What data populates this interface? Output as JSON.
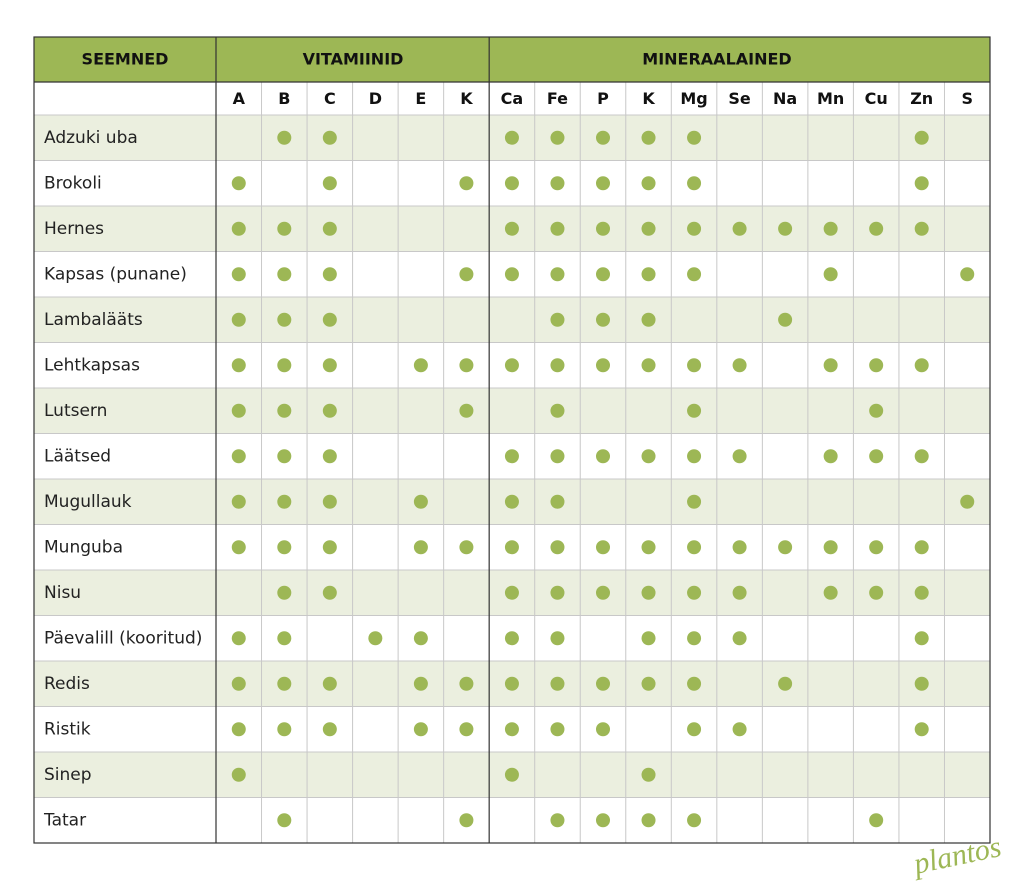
{
  "header": {
    "seeds": "SEEMNED",
    "vitamins": "VITAMIINID",
    "minerals": "MINERAALAINED"
  },
  "vitamin_columns": [
    "A",
    "B",
    "C",
    "D",
    "E",
    "K"
  ],
  "mineral_columns": [
    "Ca",
    "Fe",
    "P",
    "K",
    "Mg",
    "Se",
    "Na",
    "Mn",
    "Cu",
    "Zn",
    "S"
  ],
  "rows": [
    {
      "name": "Adzuki uba",
      "vitamins": [
        0,
        1,
        1,
        0,
        0,
        0
      ],
      "minerals": [
        1,
        1,
        1,
        1,
        1,
        0,
        0,
        0,
        0,
        1,
        0
      ]
    },
    {
      "name": "Brokoli",
      "vitamins": [
        1,
        0,
        1,
        0,
        0,
        1
      ],
      "minerals": [
        1,
        1,
        1,
        1,
        1,
        0,
        0,
        0,
        0,
        1,
        0
      ]
    },
    {
      "name": "Hernes",
      "vitamins": [
        1,
        1,
        1,
        0,
        0,
        0
      ],
      "minerals": [
        1,
        1,
        1,
        1,
        1,
        1,
        1,
        1,
        1,
        1,
        0
      ]
    },
    {
      "name": "Kapsas (punane)",
      "vitamins": [
        1,
        1,
        1,
        0,
        0,
        1
      ],
      "minerals": [
        1,
        1,
        1,
        1,
        1,
        0,
        0,
        1,
        0,
        0,
        1
      ]
    },
    {
      "name": "Lambalääts",
      "vitamins": [
        1,
        1,
        1,
        0,
        0,
        0
      ],
      "minerals": [
        0,
        1,
        1,
        1,
        0,
        0,
        1,
        0,
        0,
        0,
        0
      ]
    },
    {
      "name": "Lehtkapsas",
      "vitamins": [
        1,
        1,
        1,
        0,
        1,
        1
      ],
      "minerals": [
        1,
        1,
        1,
        1,
        1,
        1,
        0,
        1,
        1,
        1,
        0
      ]
    },
    {
      "name": "Lutsern",
      "vitamins": [
        1,
        1,
        1,
        0,
        0,
        1
      ],
      "minerals": [
        0,
        1,
        0,
        0,
        1,
        0,
        0,
        0,
        1,
        0,
        0
      ]
    },
    {
      "name": "Läätsed",
      "vitamins": [
        1,
        1,
        1,
        0,
        0,
        0
      ],
      "minerals": [
        1,
        1,
        1,
        1,
        1,
        1,
        0,
        1,
        1,
        1,
        0
      ]
    },
    {
      "name": "Mugullauk",
      "vitamins": [
        1,
        1,
        1,
        0,
        1,
        0
      ],
      "minerals": [
        1,
        1,
        0,
        0,
        1,
        0,
        0,
        0,
        0,
        0,
        1
      ]
    },
    {
      "name": "Munguba",
      "vitamins": [
        1,
        1,
        1,
        0,
        1,
        1
      ],
      "minerals": [
        1,
        1,
        1,
        1,
        1,
        1,
        1,
        1,
        1,
        1,
        0
      ]
    },
    {
      "name": "Nisu",
      "vitamins": [
        0,
        1,
        1,
        0,
        0,
        0
      ],
      "minerals": [
        1,
        1,
        1,
        1,
        1,
        1,
        0,
        1,
        1,
        1,
        0
      ]
    },
    {
      "name": "Päevalill (kooritud)",
      "vitamins": [
        1,
        1,
        0,
        1,
        1,
        0
      ],
      "minerals": [
        1,
        1,
        0,
        1,
        1,
        1,
        0,
        0,
        0,
        1,
        0
      ]
    },
    {
      "name": "Redis",
      "vitamins": [
        1,
        1,
        1,
        0,
        1,
        1
      ],
      "minerals": [
        1,
        1,
        1,
        1,
        1,
        0,
        1,
        0,
        0,
        1,
        0
      ]
    },
    {
      "name": "Ristik",
      "vitamins": [
        1,
        1,
        1,
        0,
        1,
        1
      ],
      "minerals": [
        1,
        1,
        1,
        0,
        1,
        1,
        0,
        0,
        0,
        1,
        0
      ]
    },
    {
      "name": "Sinep",
      "vitamins": [
        1,
        0,
        0,
        0,
        0,
        0
      ],
      "minerals": [
        1,
        0,
        0,
        1,
        0,
        0,
        0,
        0,
        0,
        0,
        0
      ]
    },
    {
      "name": "Tatar",
      "vitamins": [
        0,
        1,
        0,
        0,
        0,
        1
      ],
      "minerals": [
        0,
        1,
        1,
        1,
        1,
        0,
        0,
        0,
        1,
        0,
        0
      ]
    }
  ],
  "logo": "plantos"
}
